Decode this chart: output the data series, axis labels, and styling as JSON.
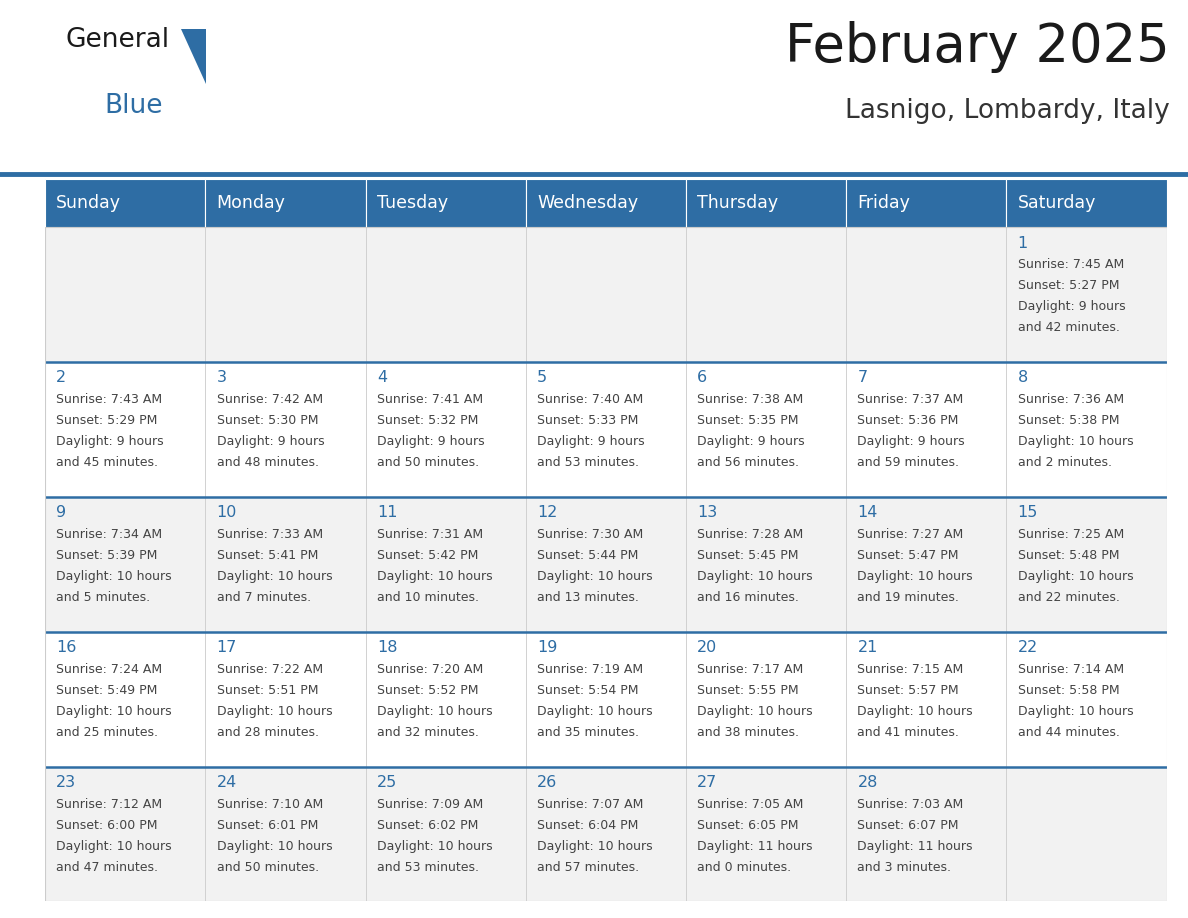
{
  "title": "February 2025",
  "subtitle": "Lasnigo, Lombardy, Italy",
  "header_bg": "#2E6DA4",
  "header_text_color": "#FFFFFF",
  "day_names": [
    "Sunday",
    "Monday",
    "Tuesday",
    "Wednesday",
    "Thursday",
    "Friday",
    "Saturday"
  ],
  "cell_bg_week0": "#F2F2F2",
  "cell_bg_week1": "#FFFFFF",
  "cell_bg_week2": "#F2F2F2",
  "cell_bg_week3": "#FFFFFF",
  "cell_bg_week4": "#F2F2F2",
  "cell_border_color": "#CCCCCC",
  "week_divider_color": "#2E6DA4",
  "date_color": "#2E6DA4",
  "info_color": "#444444",
  "background_color": "#FFFFFF",
  "days": [
    {
      "day": 1,
      "week": 0,
      "dow": 6,
      "sunrise": "7:45 AM",
      "sunset": "5:27 PM",
      "dl1": "Daylight: 9 hours",
      "dl2": "and 42 minutes."
    },
    {
      "day": 2,
      "week": 1,
      "dow": 0,
      "sunrise": "7:43 AM",
      "sunset": "5:29 PM",
      "dl1": "Daylight: 9 hours",
      "dl2": "and 45 minutes."
    },
    {
      "day": 3,
      "week": 1,
      "dow": 1,
      "sunrise": "7:42 AM",
      "sunset": "5:30 PM",
      "dl1": "Daylight: 9 hours",
      "dl2": "and 48 minutes."
    },
    {
      "day": 4,
      "week": 1,
      "dow": 2,
      "sunrise": "7:41 AM",
      "sunset": "5:32 PM",
      "dl1": "Daylight: 9 hours",
      "dl2": "and 50 minutes."
    },
    {
      "day": 5,
      "week": 1,
      "dow": 3,
      "sunrise": "7:40 AM",
      "sunset": "5:33 PM",
      "dl1": "Daylight: 9 hours",
      "dl2": "and 53 minutes."
    },
    {
      "day": 6,
      "week": 1,
      "dow": 4,
      "sunrise": "7:38 AM",
      "sunset": "5:35 PM",
      "dl1": "Daylight: 9 hours",
      "dl2": "and 56 minutes."
    },
    {
      "day": 7,
      "week": 1,
      "dow": 5,
      "sunrise": "7:37 AM",
      "sunset": "5:36 PM",
      "dl1": "Daylight: 9 hours",
      "dl2": "and 59 minutes."
    },
    {
      "day": 8,
      "week": 1,
      "dow": 6,
      "sunrise": "7:36 AM",
      "sunset": "5:38 PM",
      "dl1": "Daylight: 10 hours",
      "dl2": "and 2 minutes."
    },
    {
      "day": 9,
      "week": 2,
      "dow": 0,
      "sunrise": "7:34 AM",
      "sunset": "5:39 PM",
      "dl1": "Daylight: 10 hours",
      "dl2": "and 5 minutes."
    },
    {
      "day": 10,
      "week": 2,
      "dow": 1,
      "sunrise": "7:33 AM",
      "sunset": "5:41 PM",
      "dl1": "Daylight: 10 hours",
      "dl2": "and 7 minutes."
    },
    {
      "day": 11,
      "week": 2,
      "dow": 2,
      "sunrise": "7:31 AM",
      "sunset": "5:42 PM",
      "dl1": "Daylight: 10 hours",
      "dl2": "and 10 minutes."
    },
    {
      "day": 12,
      "week": 2,
      "dow": 3,
      "sunrise": "7:30 AM",
      "sunset": "5:44 PM",
      "dl1": "Daylight: 10 hours",
      "dl2": "and 13 minutes."
    },
    {
      "day": 13,
      "week": 2,
      "dow": 4,
      "sunrise": "7:28 AM",
      "sunset": "5:45 PM",
      "dl1": "Daylight: 10 hours",
      "dl2": "and 16 minutes."
    },
    {
      "day": 14,
      "week": 2,
      "dow": 5,
      "sunrise": "7:27 AM",
      "sunset": "5:47 PM",
      "dl1": "Daylight: 10 hours",
      "dl2": "and 19 minutes."
    },
    {
      "day": 15,
      "week": 2,
      "dow": 6,
      "sunrise": "7:25 AM",
      "sunset": "5:48 PM",
      "dl1": "Daylight: 10 hours",
      "dl2": "and 22 minutes."
    },
    {
      "day": 16,
      "week": 3,
      "dow": 0,
      "sunrise": "7:24 AM",
      "sunset": "5:49 PM",
      "dl1": "Daylight: 10 hours",
      "dl2": "and 25 minutes."
    },
    {
      "day": 17,
      "week": 3,
      "dow": 1,
      "sunrise": "7:22 AM",
      "sunset": "5:51 PM",
      "dl1": "Daylight: 10 hours",
      "dl2": "and 28 minutes."
    },
    {
      "day": 18,
      "week": 3,
      "dow": 2,
      "sunrise": "7:20 AM",
      "sunset": "5:52 PM",
      "dl1": "Daylight: 10 hours",
      "dl2": "and 32 minutes."
    },
    {
      "day": 19,
      "week": 3,
      "dow": 3,
      "sunrise": "7:19 AM",
      "sunset": "5:54 PM",
      "dl1": "Daylight: 10 hours",
      "dl2": "and 35 minutes."
    },
    {
      "day": 20,
      "week": 3,
      "dow": 4,
      "sunrise": "7:17 AM",
      "sunset": "5:55 PM",
      "dl1": "Daylight: 10 hours",
      "dl2": "and 38 minutes."
    },
    {
      "day": 21,
      "week": 3,
      "dow": 5,
      "sunrise": "7:15 AM",
      "sunset": "5:57 PM",
      "dl1": "Daylight: 10 hours",
      "dl2": "and 41 minutes."
    },
    {
      "day": 22,
      "week": 3,
      "dow": 6,
      "sunrise": "7:14 AM",
      "sunset": "5:58 PM",
      "dl1": "Daylight: 10 hours",
      "dl2": "and 44 minutes."
    },
    {
      "day": 23,
      "week": 4,
      "dow": 0,
      "sunrise": "7:12 AM",
      "sunset": "6:00 PM",
      "dl1": "Daylight: 10 hours",
      "dl2": "and 47 minutes."
    },
    {
      "day": 24,
      "week": 4,
      "dow": 1,
      "sunrise": "7:10 AM",
      "sunset": "6:01 PM",
      "dl1": "Daylight: 10 hours",
      "dl2": "and 50 minutes."
    },
    {
      "day": 25,
      "week": 4,
      "dow": 2,
      "sunrise": "7:09 AM",
      "sunset": "6:02 PM",
      "dl1": "Daylight: 10 hours",
      "dl2": "and 53 minutes."
    },
    {
      "day": 26,
      "week": 4,
      "dow": 3,
      "sunrise": "7:07 AM",
      "sunset": "6:04 PM",
      "dl1": "Daylight: 10 hours",
      "dl2": "and 57 minutes."
    },
    {
      "day": 27,
      "week": 4,
      "dow": 4,
      "sunrise": "7:05 AM",
      "sunset": "6:05 PM",
      "dl1": "Daylight: 11 hours",
      "dl2": "and 0 minutes."
    },
    {
      "day": 28,
      "week": 4,
      "dow": 5,
      "sunrise": "7:03 AM",
      "sunset": "6:07 PM",
      "dl1": "Daylight: 11 hours",
      "dl2": "and 3 minutes."
    }
  ]
}
